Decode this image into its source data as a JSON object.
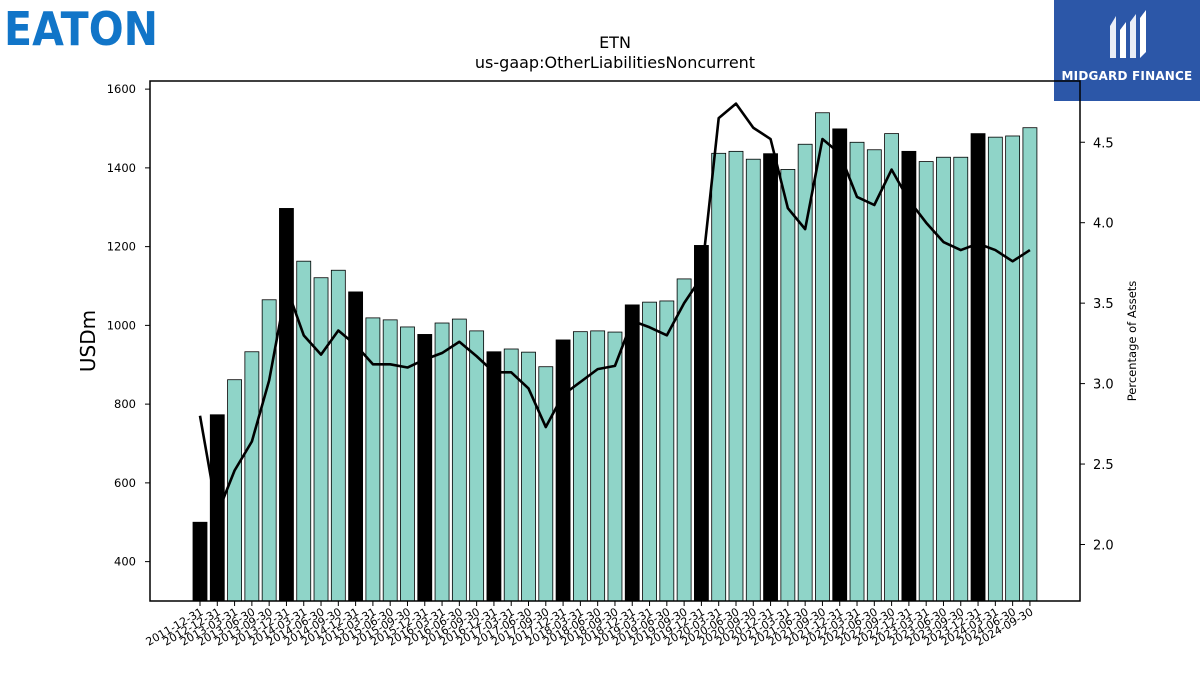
{
  "logos": {
    "left_text": "EATON",
    "left_color": "#1175c8",
    "right_text": "MIDGARD FINANCE",
    "right_color": "#2c57a8"
  },
  "chart_data": {
    "type": "bar",
    "title": "ETN",
    "subtitle": "us-gaap:OtherLiabilitiesNoncurrent",
    "ylabel": "USDm",
    "ylabel_right": "Percentage of Assets",
    "ylim": [
      300,
      1620
    ],
    "y2lim": [
      1.65,
      4.9
    ],
    "yticks": [
      400,
      600,
      800,
      1000,
      1200,
      1400,
      1600
    ],
    "y2ticks": [
      2.0,
      2.5,
      3.0,
      3.5,
      4.0,
      4.5
    ],
    "bar_color": "#8fd4c8",
    "highlight_color": "#000000",
    "line_color": "#000000",
    "categories": [
      "2011-12-31",
      "2012-12-31",
      "2013-03-31",
      "2013-06-30",
      "2013-09-30",
      "2013-12-31",
      "2014-03-31",
      "2014-06-30",
      "2014-09-30",
      "2014-12-31",
      "2015-03-31",
      "2015-06-30",
      "2015-09-30",
      "2015-12-31",
      "2016-03-31",
      "2016-06-30",
      "2016-09-30",
      "2016-12-31",
      "2017-03-31",
      "2017-06-30",
      "2017-09-30",
      "2017-12-31",
      "2018-03-31",
      "2018-06-30",
      "2018-09-30",
      "2018-12-31",
      "2019-03-31",
      "2019-06-30",
      "2019-09-30",
      "2019-12-31",
      "2020-03-31",
      "2020-06-30",
      "2020-09-30",
      "2020-12-31",
      "2021-03-31",
      "2021-06-30",
      "2021-09-30",
      "2021-12-31",
      "2022-03-31",
      "2022-06-30",
      "2022-09-30",
      "2022-12-31",
      "2023-03-31",
      "2023-06-30",
      "2023-09-30",
      "2023-12-31",
      "2024-03-31",
      "2024-06-30",
      "2024-09-30"
    ],
    "series": [
      {
        "name": "USDm",
        "values": [
          500,
          773,
          862,
          933,
          1065,
          1297,
          1163,
          1121,
          1140,
          1085,
          1019,
          1014,
          996,
          977,
          1006,
          1016,
          986,
          933,
          940,
          932,
          895,
          963,
          984,
          986,
          983,
          1052,
          1059,
          1062,
          1118,
          1203,
          1437,
          1442,
          1422,
          1436,
          1396,
          1460,
          1540,
          1499,
          1465,
          1446,
          1487,
          1442,
          1416,
          1427,
          1427,
          1487,
          1478,
          1481,
          1502
        ],
        "highlight": [
          true,
          true,
          false,
          false,
          false,
          true,
          false,
          false,
          false,
          true,
          false,
          false,
          false,
          true,
          false,
          false,
          false,
          true,
          false,
          false,
          false,
          true,
          false,
          false,
          false,
          true,
          false,
          false,
          false,
          true,
          false,
          false,
          false,
          true,
          false,
          false,
          false,
          true,
          false,
          false,
          false,
          true,
          false,
          false,
          false,
          true,
          false,
          false,
          false
        ]
      },
      {
        "name": "Percentage of Assets",
        "values": [
          2.8,
          2.19,
          2.46,
          2.64,
          3.02,
          3.6,
          3.3,
          3.18,
          3.33,
          3.24,
          3.12,
          3.12,
          3.1,
          3.15,
          3.19,
          3.26,
          3.17,
          3.07,
          3.07,
          2.97,
          2.73,
          2.93,
          3.01,
          3.09,
          3.11,
          3.39,
          3.35,
          3.3,
          3.5,
          3.66,
          4.65,
          4.74,
          4.59,
          4.52,
          4.09,
          3.96,
          4.52,
          4.43,
          4.16,
          4.11,
          4.33,
          4.14,
          4.0,
          3.88,
          3.83,
          3.87,
          3.83,
          3.76,
          3.83
        ]
      }
    ]
  }
}
